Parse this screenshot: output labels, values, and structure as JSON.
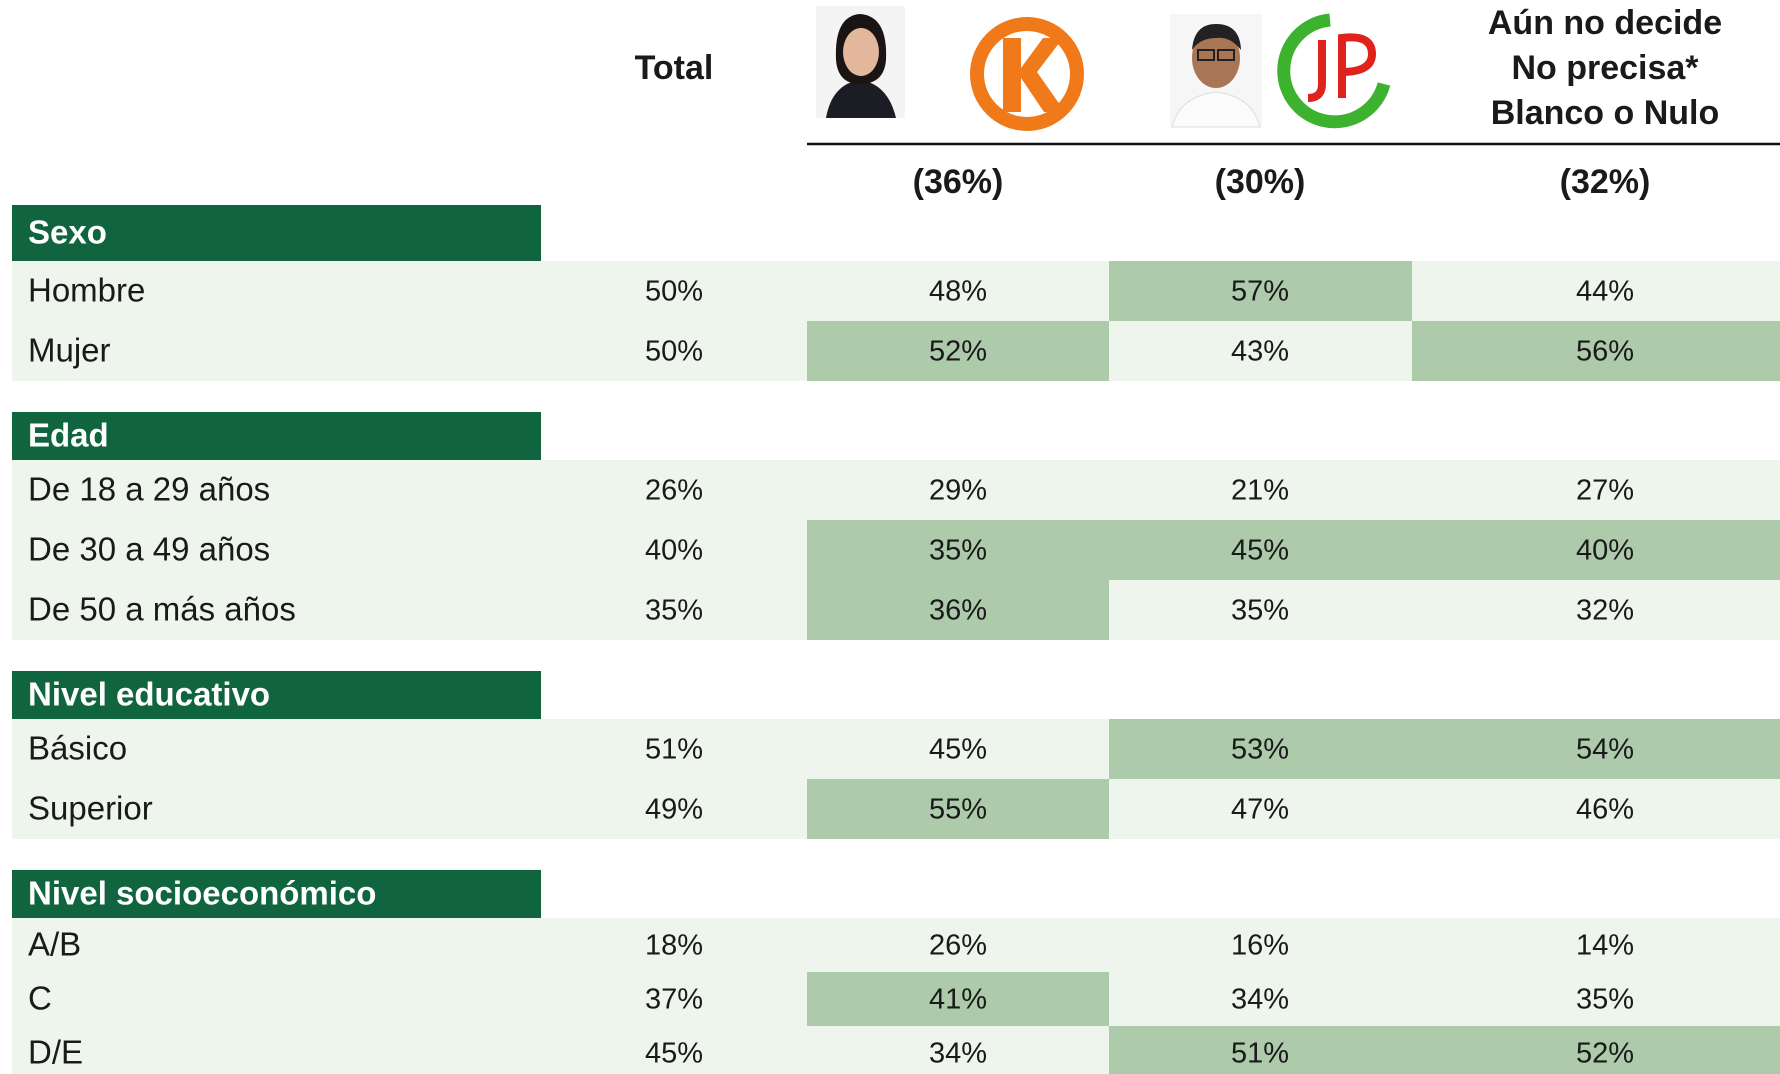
{
  "header": {
    "total": "Total",
    "undecided": [
      "Aún no decide",
      "No precisa*",
      "Blanco o Nulo"
    ]
  },
  "shares": [
    "(36%)",
    "(30%)",
    "(32%)"
  ],
  "colors": {
    "section": "#10653f",
    "row": "#eef5ec",
    "highlight": "#adcbab"
  },
  "sections": [
    {
      "title": "Sexo",
      "rows": [
        {
          "label": "Hombre",
          "values": [
            "50%",
            "48%",
            "57%",
            "44%"
          ],
          "highlight": [
            false,
            false,
            true,
            false
          ]
        },
        {
          "label": "Mujer",
          "values": [
            "50%",
            "52%",
            "43%",
            "56%"
          ],
          "highlight": [
            false,
            true,
            false,
            true
          ]
        }
      ]
    },
    {
      "title": "Edad",
      "rows": [
        {
          "label": "De 18 a 29 años",
          "values": [
            "26%",
            "29%",
            "21%",
            "27%"
          ],
          "highlight": [
            false,
            false,
            false,
            false
          ]
        },
        {
          "label": "De 30 a 49 años",
          "values": [
            "40%",
            "35%",
            "45%",
            "40%"
          ],
          "highlight": [
            false,
            true,
            true,
            true
          ]
        },
        {
          "label": "De 50 a más años",
          "values": [
            "35%",
            "36%",
            "35%",
            "32%"
          ],
          "highlight": [
            false,
            true,
            false,
            false
          ]
        }
      ]
    },
    {
      "title": "Nivel educativo",
      "rows": [
        {
          "label": "Básico",
          "values": [
            "51%",
            "45%",
            "53%",
            "54%"
          ],
          "highlight": [
            false,
            false,
            true,
            true
          ]
        },
        {
          "label": "Superior",
          "values": [
            "49%",
            "55%",
            "47%",
            "46%"
          ],
          "highlight": [
            false,
            true,
            false,
            false
          ]
        }
      ]
    },
    {
      "title": "Nivel socioeconómico",
      "rows": [
        {
          "label": "A/B",
          "values": [
            "18%",
            "26%",
            "16%",
            "14%"
          ],
          "highlight": [
            false,
            false,
            false,
            false
          ]
        },
        {
          "label": "C",
          "values": [
            "37%",
            "41%",
            "34%",
            "35%"
          ],
          "highlight": [
            false,
            true,
            false,
            false
          ]
        },
        {
          "label": "D/E",
          "values": [
            "45%",
            "34%",
            "51%",
            "52%"
          ],
          "highlight": [
            false,
            false,
            true,
            true
          ]
        }
      ]
    }
  ]
}
